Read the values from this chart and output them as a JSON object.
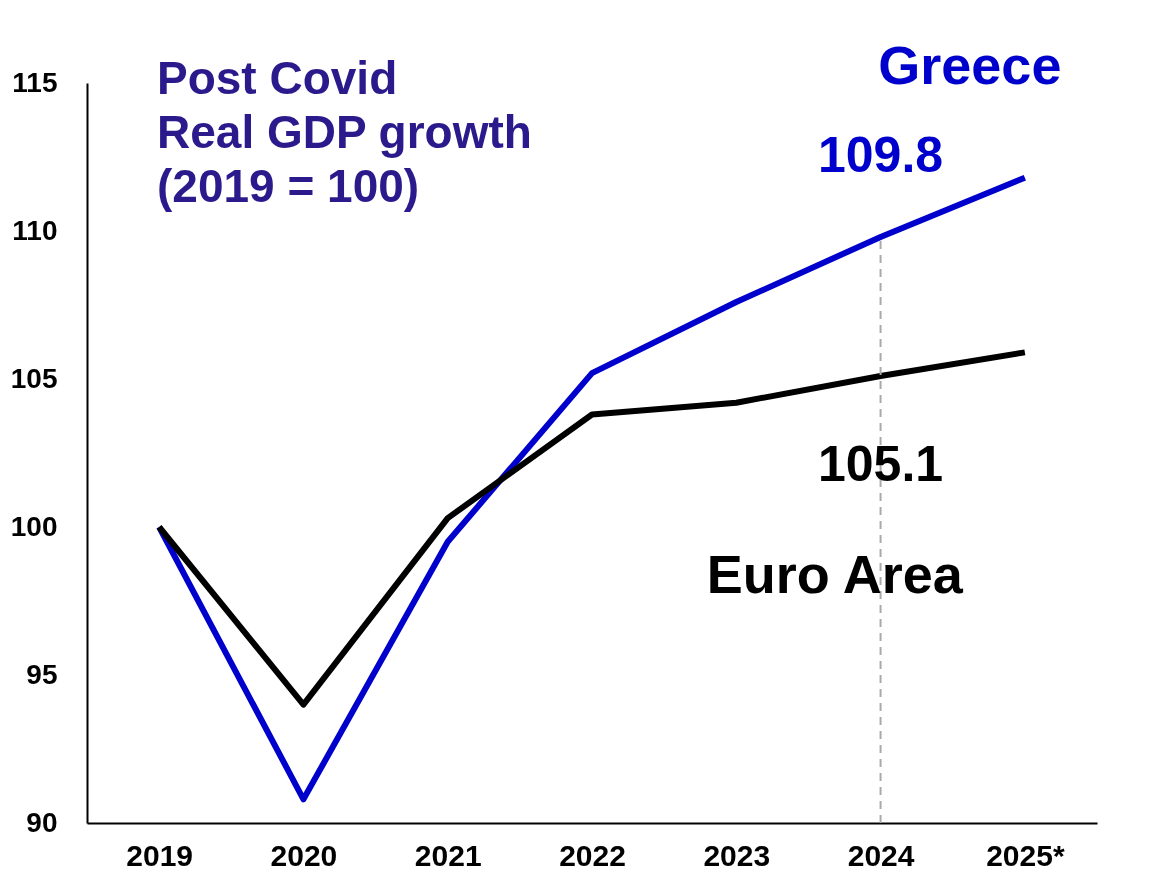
{
  "chart_data": {
    "type": "line",
    "title": "Post Covid\nReal GDP growth\n(2019 = 100)",
    "categories": [
      "2019",
      "2020",
      "2021",
      "2022",
      "2023",
      "2024",
      "2025*"
    ],
    "series": [
      {
        "name": "Greece",
        "color": "#0000cc",
        "values": [
          100,
          90.8,
          99.5,
          105.2,
          107.6,
          109.8,
          111.8
        ]
      },
      {
        "name": "Euro Area",
        "color": "#000000",
        "values": [
          100,
          94.0,
          100.3,
          103.8,
          104.2,
          105.1,
          105.9
        ]
      }
    ],
    "ylim": [
      90,
      115
    ],
    "yticks": [
      90,
      95,
      100,
      105,
      110,
      115
    ],
    "grid": false,
    "legend": false,
    "marker": "none",
    "line_style": "solid",
    "ref_lines": [
      {
        "axis": "x",
        "value": "2024",
        "color": "#aaaaaa",
        "line_style": "dashed"
      }
    ],
    "annotations": [
      {
        "text": "109.8",
        "x": "2024",
        "y": 109.8
      },
      {
        "text": "105.1",
        "x": "2024",
        "y": 105.1
      }
    ]
  }
}
